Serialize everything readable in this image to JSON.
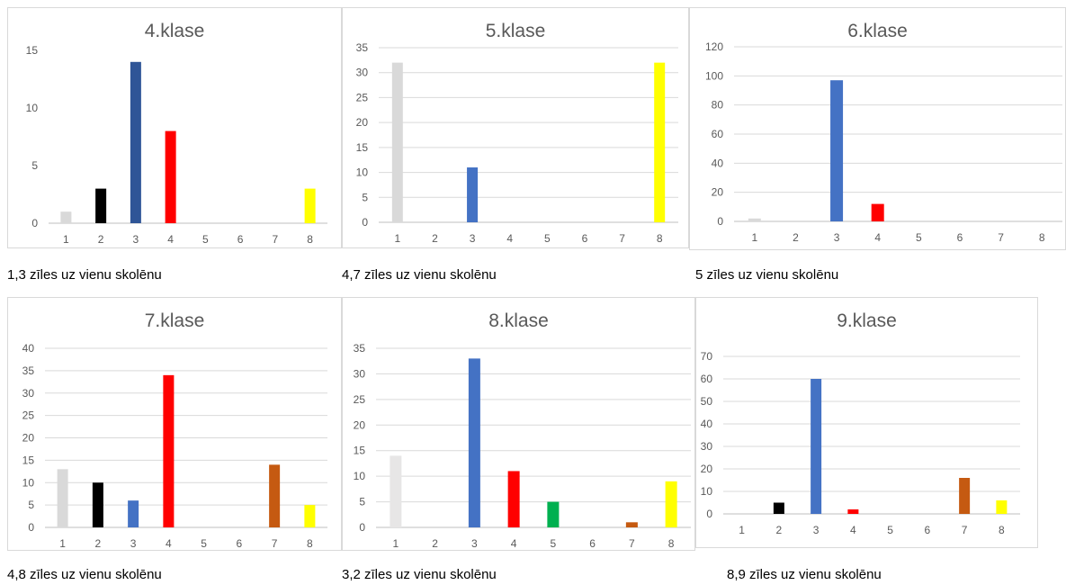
{
  "colors": {
    "c1": "#d9d9d9",
    "c2": "#000000",
    "c3": "#4472c4",
    "c3_dark": "#2f5597",
    "c4": "#ff0000",
    "c5": "#00b050",
    "c7": "#c55a11",
    "c8": "#ffff00",
    "grid": "#d9d9d9",
    "axis": "#bfbfbf"
  },
  "captions": [
    "1,3 zīles uz vienu skolēnu",
    "4,7 zīles uz vienu skolēnu",
    "5 zīles uz vienu skolēnu",
    "4,8 zīles uz vienu skolēnu",
    "3,2 zīles uz vienu skolēnu",
    "8,9 zīles uz vienu skolēnu"
  ],
  "chart_data": [
    {
      "type": "bar",
      "title": "4.klase",
      "categories": [
        "1",
        "2",
        "3",
        "4",
        "5",
        "6",
        "7",
        "8"
      ],
      "values": [
        1,
        3,
        14,
        8,
        0,
        0,
        0,
        3
      ],
      "bar_colors": [
        "#d9d9d9",
        "#000000",
        "#2f5597",
        "#ff0000",
        "#00b050",
        "#7f7f7f",
        "#c55a11",
        "#ffff00"
      ],
      "ylim": [
        0,
        15
      ],
      "yticks": [
        0,
        5,
        10,
        15
      ],
      "grid": false,
      "legend": "none"
    },
    {
      "type": "bar",
      "title": "5.klase",
      "categories": [
        "1",
        "2",
        "3",
        "4",
        "5",
        "6",
        "7",
        "8"
      ],
      "values": [
        32,
        0,
        11,
        0,
        0,
        0,
        0,
        32
      ],
      "bar_colors": [
        "#d9d9d9",
        "#000000",
        "#4472c4",
        "#ff0000",
        "#00b050",
        "#7f7f7f",
        "#c55a11",
        "#ffff00"
      ],
      "ylim": [
        0,
        35
      ],
      "yticks": [
        0,
        5,
        10,
        15,
        20,
        25,
        30,
        35
      ],
      "grid": true,
      "legend": "none"
    },
    {
      "type": "bar",
      "title": "6.klase",
      "categories": [
        "1",
        "2",
        "3",
        "4",
        "5",
        "6",
        "7",
        "8"
      ],
      "values": [
        2,
        0,
        97,
        12,
        0,
        0,
        0,
        0
      ],
      "bar_colors": [
        "#d9d9d9",
        "#000000",
        "#4472c4",
        "#ff0000",
        "#00b050",
        "#7f7f7f",
        "#c55a11",
        "#ffff00"
      ],
      "ylim": [
        0,
        120
      ],
      "yticks": [
        0,
        20,
        40,
        60,
        80,
        100,
        120
      ],
      "grid": true,
      "legend": "none"
    },
    {
      "type": "bar",
      "title": "7.klase",
      "categories": [
        "1",
        "2",
        "3",
        "4",
        "5",
        "6",
        "7",
        "8"
      ],
      "values": [
        13,
        10,
        6,
        34,
        0,
        0,
        14,
        5
      ],
      "bar_colors": [
        "#d9d9d9",
        "#000000",
        "#4472c4",
        "#ff0000",
        "#00b050",
        "#7f7f7f",
        "#c55a11",
        "#ffff00"
      ],
      "ylim": [
        0,
        40
      ],
      "yticks": [
        0,
        5,
        10,
        15,
        20,
        25,
        30,
        35,
        40
      ],
      "grid": true,
      "legend": "none"
    },
    {
      "type": "bar",
      "title": "8.klase",
      "categories": [
        "1",
        "2",
        "3",
        "4",
        "5",
        "6",
        "7",
        "8"
      ],
      "values": [
        14,
        0,
        33,
        11,
        5,
        0,
        1,
        9
      ],
      "bar_colors": [
        "#e7e6e6",
        "#000000",
        "#4472c4",
        "#ff0000",
        "#00b050",
        "#7f7f7f",
        "#c55a11",
        "#ffff00"
      ],
      "ylim": [
        0,
        35
      ],
      "yticks": [
        0,
        5,
        10,
        15,
        20,
        25,
        30,
        35
      ],
      "grid": true,
      "legend": "none"
    },
    {
      "type": "bar",
      "title": "9.klase",
      "categories": [
        "1",
        "2",
        "3",
        "4",
        "5",
        "6",
        "7",
        "8"
      ],
      "values": [
        0,
        5,
        60,
        2,
        0,
        0,
        16,
        6
      ],
      "bar_colors": [
        "#d9d9d9",
        "#000000",
        "#4472c4",
        "#ff0000",
        "#00b050",
        "#7f7f7f",
        "#c55a11",
        "#ffff00"
      ],
      "ylim": [
        0,
        70
      ],
      "yticks": [
        0,
        10,
        20,
        30,
        40,
        50,
        60,
        70
      ],
      "grid": true,
      "legend": "none"
    }
  ]
}
